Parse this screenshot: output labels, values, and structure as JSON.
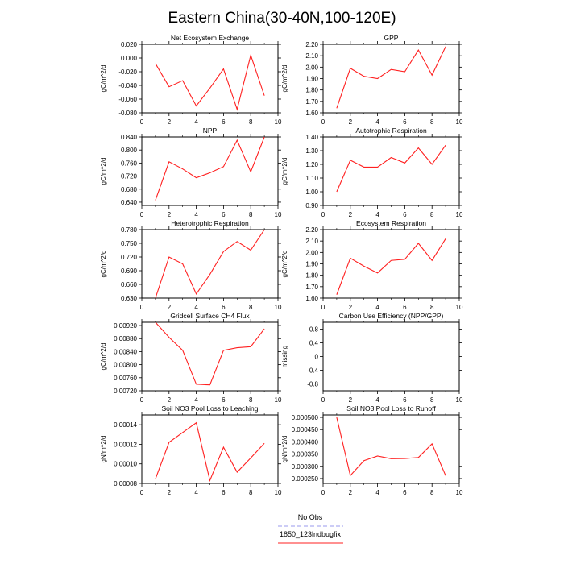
{
  "title": "Eastern China(30-40N,100-120E)",
  "legend": [
    {
      "label": "No Obs",
      "color": "#9a9aee",
      "dash": true
    },
    {
      "label": "1850_123lndbugfix",
      "color": "#ff2020",
      "dash": false
    }
  ],
  "chart_data": [
    {
      "type": "line",
      "title": "Net Ecosystem Exchange",
      "ylabel": "gC/m^2/d",
      "xlim": [
        0,
        10
      ],
      "xticks": [
        0,
        2,
        4,
        6,
        8,
        10
      ],
      "ylim": [
        -0.08,
        0.02
      ],
      "yticks": [
        "-0.080",
        "-0.060",
        "-0.040",
        "-0.020",
        "0.000",
        "0.020"
      ],
      "series": [
        {
          "color": "#ff2020",
          "x": [
            1,
            2,
            3,
            4,
            5,
            6,
            7,
            8,
            9
          ],
          "values": [
            -0.008,
            -0.042,
            -0.033,
            -0.07,
            -0.044,
            -0.016,
            -0.075,
            0.004,
            -0.055
          ]
        }
      ]
    },
    {
      "type": "line",
      "title": "GPP",
      "ylabel": "gC/m^2/d",
      "xlim": [
        0,
        10
      ],
      "xticks": [
        0,
        2,
        4,
        6,
        8,
        10
      ],
      "ylim": [
        1.6,
        2.2
      ],
      "yticks": [
        "1.60",
        "1.70",
        "1.80",
        "1.90",
        "2.00",
        "2.10",
        "2.20"
      ],
      "series": [
        {
          "color": "#ff2020",
          "x": [
            1,
            2,
            3,
            4,
            5,
            6,
            7,
            8,
            9
          ],
          "values": [
            1.64,
            1.99,
            1.92,
            1.9,
            1.98,
            1.96,
            2.15,
            1.93,
            2.18
          ]
        }
      ]
    },
    {
      "type": "line",
      "title": "NPP",
      "ylabel": "gC/m^2/d",
      "xlim": [
        0,
        10
      ],
      "xticks": [
        0,
        2,
        4,
        6,
        8,
        10
      ],
      "ylim": [
        0.63,
        0.84
      ],
      "yticks": [
        "0.640",
        "0.680",
        "0.720",
        "0.760",
        "0.800",
        "0.840"
      ],
      "series": [
        {
          "color": "#ff2020",
          "x": [
            1,
            2,
            3,
            4,
            5,
            6,
            7,
            8,
            9
          ],
          "values": [
            0.646,
            0.764,
            0.742,
            0.715,
            0.73,
            0.749,
            0.83,
            0.733,
            0.84
          ]
        }
      ]
    },
    {
      "type": "line",
      "title": "Autotrophic Respiration",
      "ylabel": "gC/m^2/d",
      "xlim": [
        0,
        10
      ],
      "xticks": [
        0,
        2,
        4,
        6,
        8,
        10
      ],
      "ylim": [
        0.9,
        1.4
      ],
      "yticks": [
        "0.90",
        "1.00",
        "1.10",
        "1.20",
        "1.30",
        "1.40"
      ],
      "series": [
        {
          "color": "#ff2020",
          "x": [
            1,
            2,
            3,
            4,
            5,
            6,
            7,
            8,
            9
          ],
          "values": [
            1.0,
            1.23,
            1.18,
            1.18,
            1.25,
            1.21,
            1.32,
            1.2,
            1.34
          ]
        }
      ]
    },
    {
      "type": "line",
      "title": "Heterotrophic Respiration",
      "ylabel": "gC/m^2/d",
      "xlim": [
        0,
        10
      ],
      "xticks": [
        0,
        2,
        4,
        6,
        8,
        10
      ],
      "ylim": [
        0.63,
        0.78
      ],
      "yticks": [
        "0.630",
        "0.660",
        "0.690",
        "0.720",
        "0.750",
        "0.780"
      ],
      "series": [
        {
          "color": "#ff2020",
          "x": [
            1,
            2,
            3,
            4,
            5,
            6,
            7,
            8,
            9
          ],
          "values": [
            0.63,
            0.72,
            0.705,
            0.639,
            0.682,
            0.732,
            0.754,
            0.735,
            0.78
          ]
        }
      ]
    },
    {
      "type": "line",
      "title": "Ecosystem Respiration",
      "ylabel": "gC/m^2/d",
      "xlim": [
        0,
        10
      ],
      "xticks": [
        0,
        2,
        4,
        6,
        8,
        10
      ],
      "ylim": [
        1.6,
        2.2
      ],
      "yticks": [
        "1.60",
        "1.70",
        "1.80",
        "1.90",
        "2.00",
        "2.10",
        "2.20"
      ],
      "series": [
        {
          "color": "#ff2020",
          "x": [
            1,
            2,
            3,
            4,
            5,
            6,
            7,
            8,
            9
          ],
          "values": [
            1.63,
            1.95,
            1.88,
            1.82,
            1.93,
            1.94,
            2.08,
            1.93,
            2.12
          ]
        }
      ]
    },
    {
      "type": "line",
      "title": "Gridcell Surface CH4 Flux",
      "ylabel": "gC/m^2/d",
      "xlim": [
        0,
        10
      ],
      "xticks": [
        0,
        2,
        4,
        6,
        8,
        10
      ],
      "ylim": [
        0.0072,
        0.0093
      ],
      "yticks": [
        "0.00720",
        "0.00760",
        "0.00800",
        "0.00840",
        "0.00880",
        "0.00920"
      ],
      "series": [
        {
          "color": "#ff2020",
          "x": [
            1,
            2,
            3,
            4,
            5,
            6,
            7,
            8,
            9
          ],
          "values": [
            0.0093,
            0.00884,
            0.00844,
            0.0074,
            0.00738,
            0.00844,
            0.00852,
            0.00855,
            0.0091
          ]
        }
      ]
    },
    {
      "type": "line",
      "title": "Carbon Use Efficiency (NPP/GPP)",
      "ylabel": "missing",
      "xlim": [
        0,
        10
      ],
      "xticks": [
        0,
        2,
        4,
        6,
        8,
        10
      ],
      "ylim": [
        -1.0,
        1.0
      ],
      "yticks": [
        "-0.8",
        "-0.4",
        "0",
        "0.4",
        "0.8"
      ],
      "series": []
    },
    {
      "type": "line",
      "title": "Soil NO3 Pool Loss to Leaching",
      "ylabel": "gN/m^2/d",
      "xlim": [
        0,
        10
      ],
      "xticks": [
        0,
        2,
        4,
        6,
        8,
        10
      ],
      "ylim": [
        8e-05,
        0.00015
      ],
      "yticks": [
        "0.00008",
        "0.00010",
        "0.00012",
        "0.00014"
      ],
      "series": [
        {
          "color": "#ff2020",
          "x": [
            1,
            2,
            3,
            4,
            5,
            6,
            7,
            8,
            9
          ],
          "values": [
            8.45e-05,
            0.000122,
            0.000132,
            0.000142,
            8.3e-05,
            0.000117,
            9.15e-05,
            0.000106,
            0.000121
          ]
        }
      ]
    },
    {
      "type": "line",
      "title": "Soil NO3 Pool Loss to Runoff",
      "ylabel": "gN/m^2/d",
      "xlim": [
        0,
        10
      ],
      "xticks": [
        0,
        2,
        4,
        6,
        8,
        10
      ],
      "ylim": [
        0.00023,
        0.00051
      ],
      "yticks": [
        "0.000250",
        "0.000300",
        "0.000350",
        "0.000400",
        "0.000450",
        "0.000500"
      ],
      "series": [
        {
          "color": "#ff2020",
          "x": [
            1,
            2,
            3,
            4,
            5,
            6,
            7,
            8,
            9
          ],
          "values": [
            0.0005,
            0.000262,
            0.000323,
            0.000342,
            0.000331,
            0.000332,
            0.000336,
            0.000392,
            0.000262
          ]
        }
      ]
    }
  ]
}
